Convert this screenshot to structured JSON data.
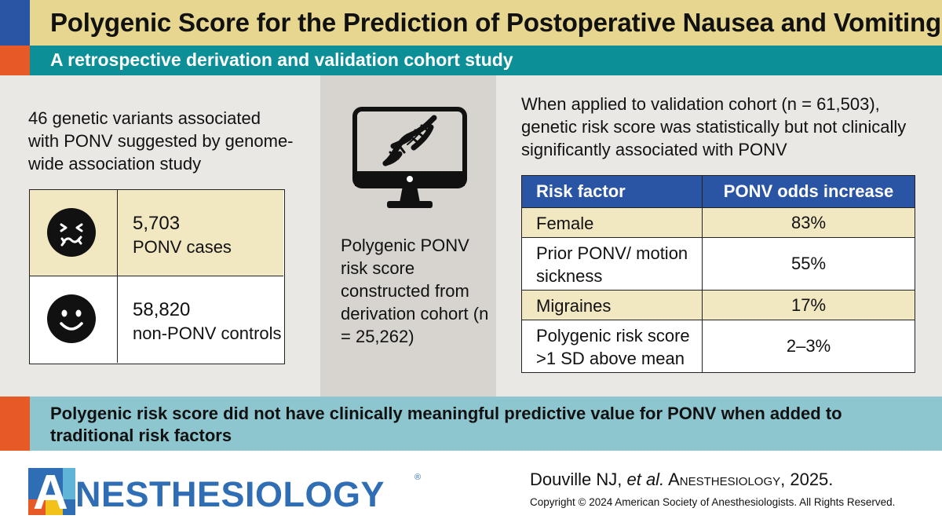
{
  "header": {
    "title": "Polygenic Score for the Prediction of Postoperative Nausea and Vomiting",
    "subtitle": "A retrospective derivation and validation cohort study"
  },
  "left": {
    "intro": "46 genetic variants associated with PONV suggested by genome-wide association study",
    "cohorts": [
      {
        "count": "5,703",
        "label": "PONV cases",
        "icon": "nauseated-face-icon"
      },
      {
        "count": "58,820",
        "label": "non-PONV controls",
        "icon": "smiling-face-icon"
      }
    ]
  },
  "middle": {
    "icon": "monitor-dna-icon",
    "text": "Polygenic PONV risk score constructed from derivation cohort (n = 25,262)"
  },
  "right": {
    "intro": "When applied to validation cohort (n = 61,503), genetic risk score was statistically but not clinically significantly associated with PONV",
    "table": {
      "headers": [
        "Risk factor",
        "PONV odds increase"
      ],
      "rows": [
        {
          "factor": "Female",
          "value": "83%"
        },
        {
          "factor": "Prior PONV/ motion sickness",
          "value": "55%"
        },
        {
          "factor": "Migraines",
          "value": "17%"
        },
        {
          "factor": "Polygenic risk score >1 SD above mean",
          "value": "2–3%"
        }
      ]
    }
  },
  "conclusion": "Polygenic risk score did not have clinically meaningful predictive value for PONV when added to traditional risk factors",
  "footer": {
    "logo_text": "ANESTHESIOLOGY",
    "logo_mark": "®",
    "citation_authors": "Douville NJ, ",
    "citation_etal": "et al.",
    "citation_journal": " Anesthesiology",
    "citation_year": ", 2025.",
    "copyright": "Copyright © 2024 American Society of Anesthesiologists. All Rights Reserved."
  },
  "colors": {
    "title_bar": "#e6d68f",
    "subtitle_bar": "#0c8f97",
    "accent_blue": "#2a55a5",
    "accent_orange": "#e85a25",
    "conclusion_bar": "#8dc6cf",
    "table_highlight": "#f1e7c1"
  }
}
